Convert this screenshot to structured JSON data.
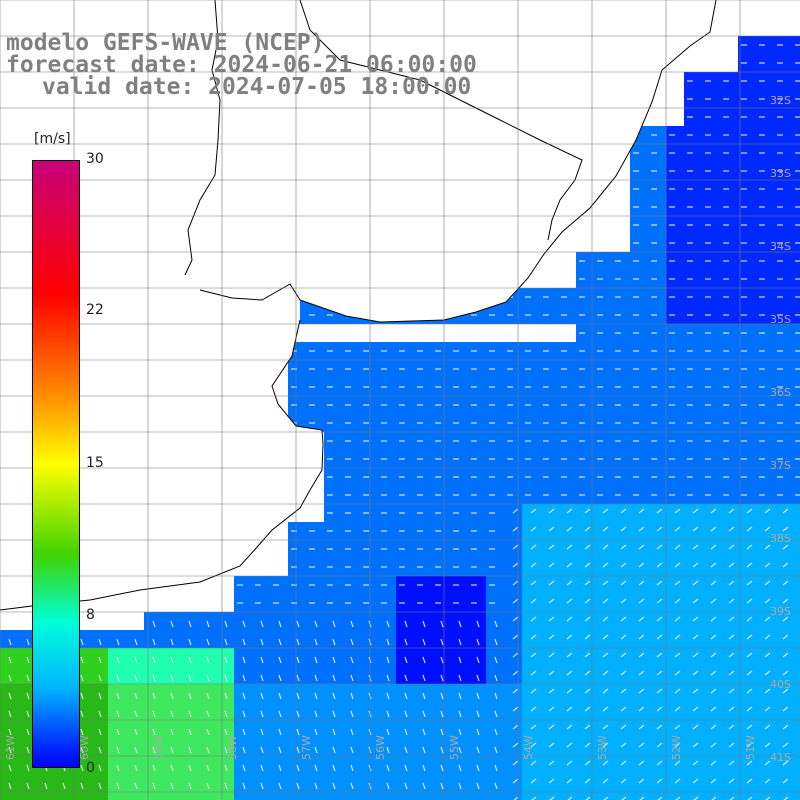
{
  "title": {
    "line1": "modelo GEFS-WAVE (NCEP)",
    "line2": "forecast date: 2024-06-21 06:00:00",
    "line3": "valid date: 2024-07-05 18:00:00"
  },
  "colorbar": {
    "unit": "[m/s]",
    "ticks": [
      "30",
      "22",
      "15",
      "8",
      "0"
    ],
    "colors": [
      "#c8007a",
      "#ff0000",
      "#ff9900",
      "#ffff00",
      "#3fd400",
      "#00ffd8",
      "#00b4ff",
      "#0040ff",
      "#0000ff"
    ]
  },
  "map": {
    "lat_labels": [
      "32S",
      "33S",
      "34S",
      "35S",
      "36S",
      "37S",
      "38S",
      "39S",
      "40S",
      "41S"
    ],
    "lon_labels": [
      "61W",
      "60W",
      "59W",
      "58W",
      "57W",
      "56W",
      "55W",
      "54W",
      "53W",
      "52W",
      "51W"
    ],
    "land_color": "#ffffff",
    "ocean_color": "#0050ff",
    "arrow_color": "#ffffff",
    "grid_color": "#777777"
  }
}
